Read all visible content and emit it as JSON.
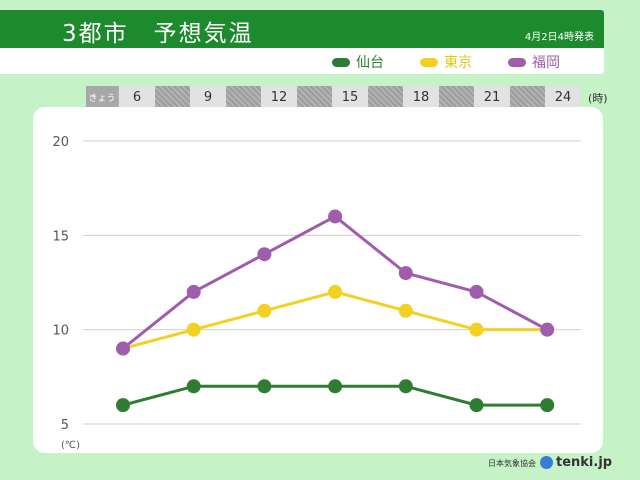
{
  "header": {
    "title": "3都市　予想気温",
    "date": "4月2日4時発表"
  },
  "legend": [
    {
      "name": "仙台",
      "color": "#2e7d32"
    },
    {
      "name": "東京",
      "color": "#f2d024"
    },
    {
      "name": "福岡",
      "color": "#a05cad"
    }
  ],
  "timebar": {
    "day_label": "きょう",
    "hours": [
      "6",
      "9",
      "12",
      "15",
      "18",
      "21",
      "24"
    ],
    "unit": "(時)"
  },
  "chart_data": {
    "type": "line",
    "x": [
      6,
      9,
      12,
      15,
      18,
      21,
      24
    ],
    "ylim": [
      5,
      20
    ],
    "yticks": [
      "20",
      "15",
      "10",
      "5"
    ],
    "yunit": "(℃)",
    "grid": true,
    "series": [
      {
        "name": "仙台",
        "color": "#2e7d32",
        "values": [
          6,
          7,
          7,
          7,
          7,
          6,
          6
        ]
      },
      {
        "name": "東京",
        "color": "#f2d024",
        "values": [
          9,
          10,
          11,
          12,
          11,
          10,
          10
        ]
      },
      {
        "name": "福岡",
        "color": "#a05cad",
        "values": [
          9,
          12,
          14,
          16,
          13,
          12,
          10
        ]
      }
    ]
  },
  "footer": {
    "credit": "日本気象協会",
    "logo": "tenki.jp"
  }
}
